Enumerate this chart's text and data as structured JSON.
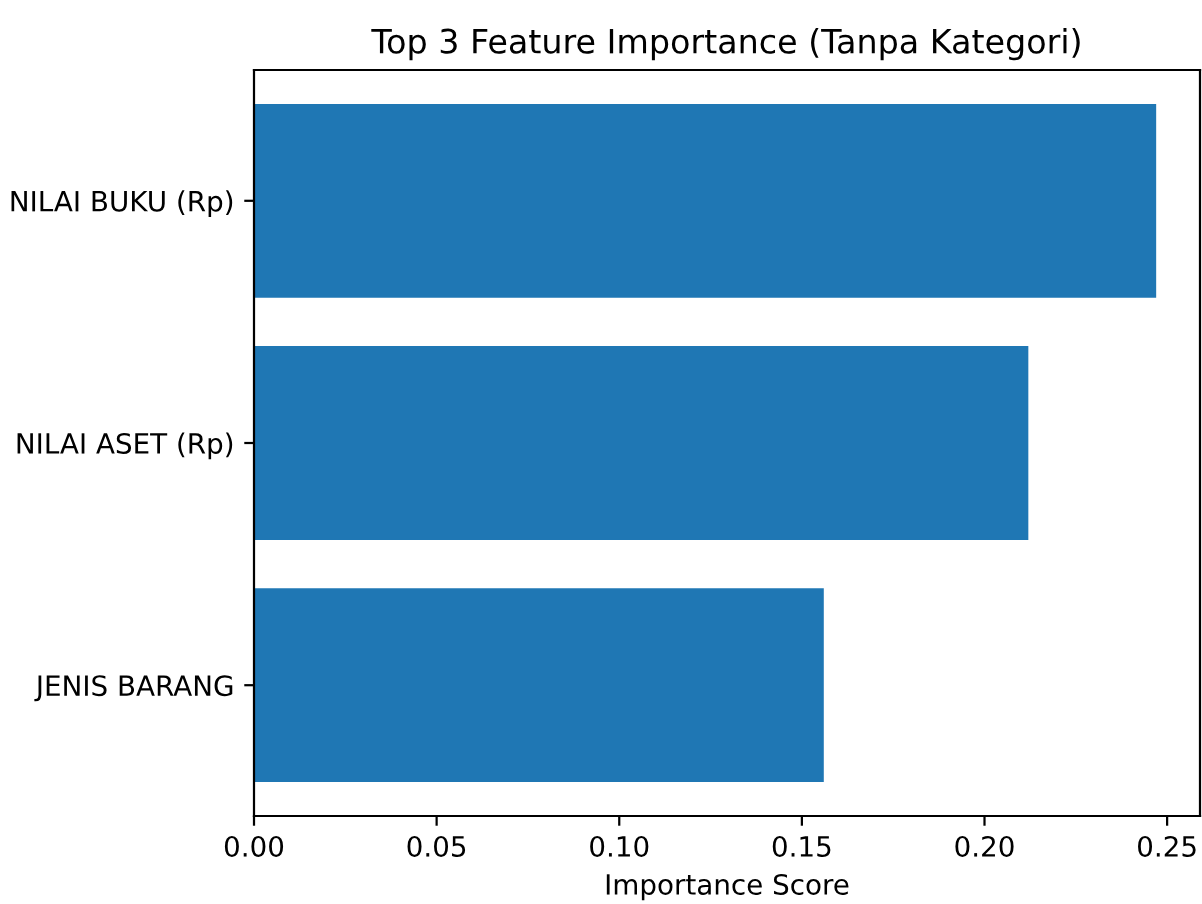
{
  "chart_data": {
    "type": "bar",
    "orientation": "horizontal",
    "title": "Top 3 Feature Importance (Tanpa Kategori)",
    "xlabel": "Importance Score",
    "categories": [
      "NILAI BUKU (Rp)",
      "NILAI ASET (Rp)",
      "JENIS BARANG"
    ],
    "values": [
      0.247,
      0.212,
      0.156
    ],
    "color": "#1f77b4",
    "xlim": [
      0,
      0.259
    ],
    "xticks": [
      {
        "value": 0,
        "label": "0.00"
      },
      {
        "value": 0.05,
        "label": "0.05"
      },
      {
        "value": 0.1,
        "label": "0.10"
      },
      {
        "value": 0.15,
        "label": "0.15"
      },
      {
        "value": 0.2,
        "label": "0.20"
      },
      {
        "value": 0.25,
        "label": "0.25"
      }
    ],
    "grid": false,
    "legend": false
  }
}
